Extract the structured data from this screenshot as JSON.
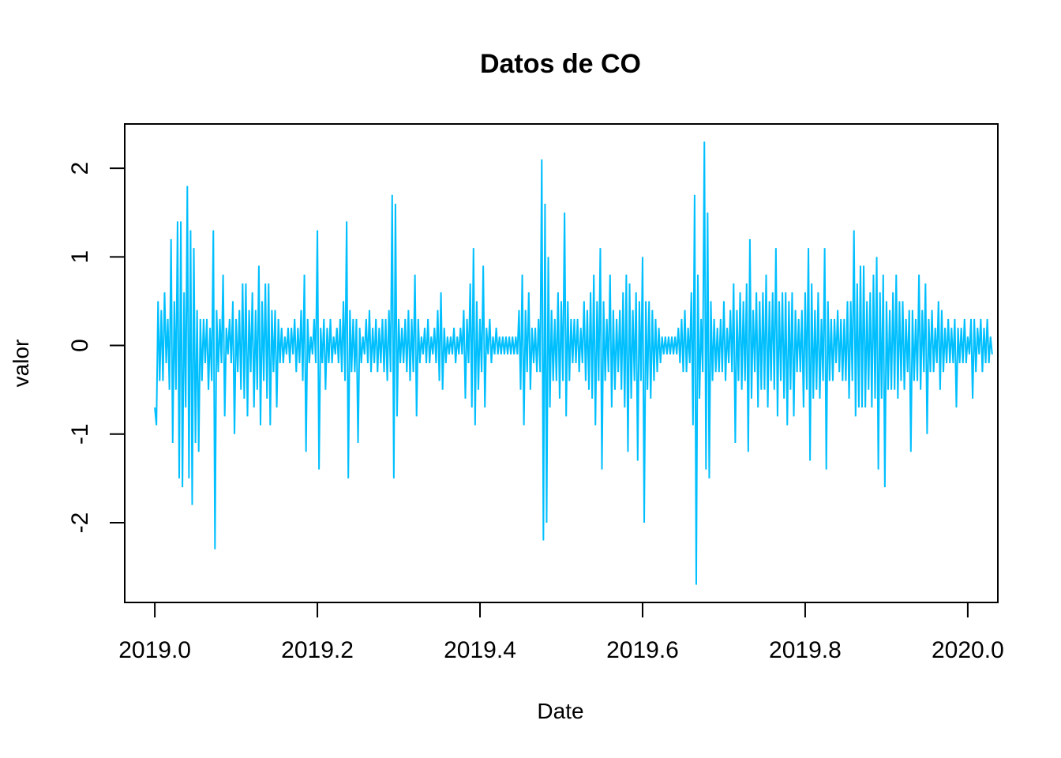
{
  "chart_data": {
    "type": "line",
    "title": "Datos de CO",
    "xlabel": "Date",
    "ylabel": "valor",
    "xlim": [
      2018.963,
      2020.037
    ],
    "ylim": [
      -2.9,
      2.5
    ],
    "x_ticks": [
      2019.0,
      2019.2,
      2019.4,
      2019.6,
      2019.8,
      2020.0
    ],
    "x_tick_labels": [
      "2019.0",
      "2019.2",
      "2019.4",
      "2019.6",
      "2019.8",
      "2020.0"
    ],
    "y_ticks": [
      -2,
      -1,
      0,
      1,
      2
    ],
    "y_tick_labels": [
      "-2",
      "-1",
      "0",
      "1",
      "2"
    ],
    "grid": false,
    "series": [
      {
        "color": "#00BFFF",
        "x_start": 2019.0,
        "x_step": 0.002,
        "values": [
          -0.7,
          -0.9,
          0.5,
          -0.4,
          0.4,
          -0.4,
          0.6,
          -0.2,
          0.3,
          -0.5,
          1.2,
          -1.1,
          0.5,
          -0.5,
          1.4,
          -1.5,
          1.4,
          -1.6,
          0.6,
          -0.7,
          1.8,
          -1.5,
          1.3,
          -1.8,
          1.1,
          -1.1,
          0.4,
          -1.2,
          0.3,
          -0.4,
          0.3,
          -0.2,
          0.3,
          -0.5,
          0.2,
          -0.4,
          1.3,
          -2.3,
          0.4,
          -0.3,
          0.3,
          -0.2,
          0.8,
          -0.8,
          0.2,
          -0.1,
          0.3,
          -0.2,
          0.5,
          -1.0,
          0.3,
          -0.3,
          0.4,
          -0.5,
          0.7,
          -0.6,
          0.7,
          -0.8,
          0.4,
          -0.3,
          0.6,
          -0.7,
          0.4,
          -0.5,
          0.9,
          -0.9,
          0.5,
          -0.4,
          0.7,
          -0.6,
          0.7,
          -0.9,
          0.4,
          -0.3,
          0.4,
          -0.7,
          0.3,
          -0.2,
          0.2,
          -0.2,
          0.1,
          -0.1,
          0.2,
          -0.2,
          0.2,
          -0.1,
          0.3,
          -0.3,
          0.2,
          -0.2,
          0.4,
          -0.4,
          0.8,
          -1.2,
          0.3,
          -0.2,
          0.1,
          -0.1,
          0.3,
          -0.2,
          1.3,
          -1.4,
          0.2,
          -0.2,
          0.3,
          -0.5,
          0.2,
          -0.2,
          0.3,
          -0.2,
          0.1,
          -0.1,
          0.2,
          -0.2,
          0.3,
          -0.3,
          0.5,
          -0.4,
          1.4,
          -1.5,
          0.4,
          -0.3,
          0.3,
          -0.3,
          0.3,
          -1.1,
          0.2,
          -0.2,
          0.1,
          -0.1,
          0.3,
          -0.2,
          0.4,
          -0.3,
          0.2,
          -0.2,
          0.3,
          -0.3,
          0.2,
          -0.2,
          0.3,
          -0.3,
          0.3,
          -0.4,
          0.4,
          -0.3,
          1.7,
          -1.5,
          1.6,
          -0.8,
          0.3,
          -0.2,
          0.2,
          -0.2,
          0.3,
          -0.3,
          0.4,
          -0.4,
          0.3,
          -0.3,
          0.8,
          -0.8,
          0.3,
          -0.2,
          0.1,
          -0.1,
          0.2,
          -0.2,
          0.3,
          -0.2,
          0.1,
          -0.1,
          0.2,
          -0.2,
          0.4,
          -0.4,
          0.6,
          -0.5,
          0.2,
          -0.2,
          0.1,
          -0.1,
          0.1,
          -0.1,
          0.2,
          -0.2,
          0.1,
          -0.1,
          0.2,
          -0.1,
          0.4,
          -0.6,
          0.3,
          -0.2,
          0.7,
          -0.7,
          1.1,
          -0.9,
          0.5,
          -0.5,
          0.3,
          -0.3,
          0.9,
          -0.7,
          0.2,
          -0.1,
          0.3,
          -0.2,
          0.1,
          -0.1,
          0.2,
          -0.1,
          0.1,
          -0.1,
          0.1,
          -0.1,
          0.1,
          -0.1,
          0.1,
          -0.1,
          0.1,
          -0.1,
          0.1,
          -0.1,
          0.4,
          -0.5,
          0.8,
          -0.9,
          0.4,
          -0.3,
          0.6,
          -0.5,
          0.2,
          -0.2,
          0.2,
          -0.3,
          0.3,
          -0.3,
          2.1,
          -2.2,
          1.6,
          -2.0,
          1.0,
          -0.7,
          0.4,
          -0.4,
          0.3,
          -0.4,
          0.6,
          -0.6,
          0.5,
          -0.4,
          1.5,
          -0.8,
          0.5,
          -0.4,
          0.3,
          -0.2,
          0.3,
          -0.2,
          0.3,
          -0.3,
          0.2,
          -0.2,
          0.5,
          -0.4,
          0.4,
          -0.5,
          0.6,
          -0.6,
          0.8,
          -0.9,
          0.5,
          -0.4,
          1.1,
          -1.4,
          0.5,
          -0.4,
          0.3,
          -0.3,
          0.8,
          -0.7,
          0.4,
          -0.5,
          0.3,
          -0.3,
          0.4,
          -0.5,
          0.6,
          -0.7,
          0.8,
          -1.2,
          0.7,
          -0.6,
          0.4,
          -0.4,
          0.6,
          -1.3,
          0.5,
          -0.4,
          1.0,
          -2.0,
          0.5,
          -0.5,
          0.5,
          -0.6,
          0.4,
          -0.4,
          0.3,
          -0.3,
          0.2,
          -0.2,
          0.1,
          -0.1,
          0.1,
          -0.1,
          0.1,
          -0.1,
          0.1,
          -0.1,
          0.1,
          -0.1,
          0.2,
          -0.2,
          0.3,
          -0.3,
          0.4,
          -0.3,
          0.2,
          -0.2,
          0.6,
          -0.9,
          1.7,
          -2.7,
          0.8,
          -0.6,
          0.3,
          -0.3,
          2.3,
          -1.4,
          1.5,
          -1.5,
          0.5,
          -0.4,
          0.3,
          -0.3,
          0.2,
          -0.3,
          0.3,
          -0.3,
          0.5,
          -0.4,
          0.2,
          -0.2,
          0.4,
          -0.3,
          0.7,
          -1.1,
          0.4,
          -0.4,
          0.6,
          -0.5,
          0.5,
          -0.4,
          0.7,
          -1.2,
          1.2,
          -0.6,
          0.4,
          -0.3,
          0.6,
          -0.7,
          0.5,
          -0.5,
          0.6,
          -0.5,
          0.8,
          -0.7,
          0.5,
          -0.4,
          0.6,
          -0.5,
          1.1,
          -0.8,
          0.5,
          -0.4,
          0.6,
          -0.6,
          0.6,
          -0.9,
          0.5,
          -0.5,
          0.6,
          -0.8,
          0.4,
          -0.3,
          0.3,
          -0.3,
          0.4,
          -0.7,
          0.6,
          -0.5,
          1.1,
          -1.3,
          0.7,
          -0.6,
          0.4,
          -0.5,
          0.6,
          -0.6,
          0.3,
          -0.4,
          1.1,
          -1.4,
          0.5,
          -0.4,
          0.3,
          -0.4,
          0.3,
          -0.2,
          0.4,
          -0.3,
          0.3,
          -0.4,
          0.3,
          -0.4,
          0.5,
          -0.6,
          0.5,
          -0.4,
          1.3,
          -0.8,
          0.7,
          -0.7,
          0.9,
          -0.7,
          0.9,
          -0.7,
          0.5,
          -0.5,
          0.6,
          -0.7,
          0.8,
          -0.6,
          1.0,
          -1.4,
          0.6,
          -0.6,
          0.8,
          -1.6,
          0.5,
          -0.5,
          0.4,
          -0.5,
          0.6,
          -0.5,
          0.8,
          -0.6,
          0.5,
          -0.4,
          0.5,
          -0.5,
          0.3,
          -0.3,
          0.4,
          -1.2,
          0.4,
          -0.4,
          0.3,
          -0.4,
          0.8,
          -0.5,
          0.4,
          -0.3,
          0.7,
          -1.0,
          0.3,
          -0.3,
          0.4,
          -0.3,
          0.2,
          -0.2,
          0.5,
          -0.5,
          0.4,
          -0.3,
          0.2,
          -0.2,
          0.3,
          -0.2,
          0.2,
          -0.2,
          0.3,
          -0.7,
          0.2,
          -0.2,
          0.2,
          -0.2,
          0.3,
          -0.2,
          0.1,
          -0.1,
          0.3,
          -0.6,
          0.3,
          -0.3,
          0.2,
          -0.1,
          0.3,
          -0.3,
          0.2,
          -0.2,
          0.3,
          -0.2,
          0.1,
          -0.1
        ]
      }
    ]
  }
}
